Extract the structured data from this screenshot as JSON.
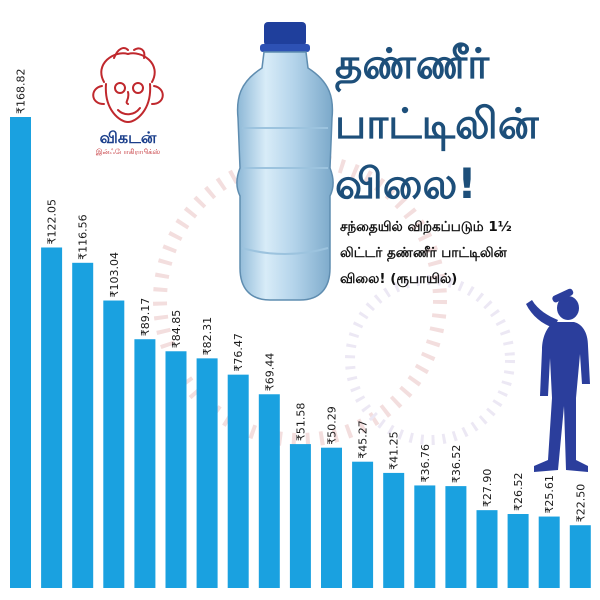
{
  "branding": {
    "name": "விகடன்",
    "tagline": "இன்ஃபோகிராபிக்ஸ்"
  },
  "colors": {
    "bar": "#1aa1e0",
    "title": "#1d4f7a",
    "figure": "#2b3e9c",
    "logo_accent": "#c0282d"
  },
  "icons": [
    "water-bottle-icon",
    "drinking-person-icon",
    "vikatan-logo-icon"
  ],
  "chart_data": {
    "type": "bar",
    "title": "தண்ணீர் பாட்டிலின் விலை!",
    "title_lines": [
      "தண்ணீர்",
      "பாட்டிலின்",
      "விலை!"
    ],
    "subtitle_lines": [
      "சந்தையில் விற்கப்படும் 1½",
      "லிட்டர் தண்ணீர் பாட்டிலின்",
      "விலை! (ரூபாயில்)"
    ],
    "currency_symbol": "₹",
    "categories": [],
    "values": [
      168.82,
      122.05,
      116.56,
      103.04,
      89.17,
      84.85,
      82.31,
      76.47,
      69.44,
      51.58,
      50.29,
      45.27,
      41.25,
      36.76,
      36.52,
      27.9,
      26.52,
      25.61,
      22.5
    ],
    "labels": [
      "₹168.82",
      "₹122.05",
      "₹116.56",
      "₹103.04",
      "₹89.17",
      "₹84.85",
      "₹82.31",
      "₹76.47",
      "₹69.44",
      "₹51.58",
      "₹50.29",
      "₹45.27",
      "₹41.25",
      "₹36.76",
      "₹36.52",
      "₹27.90",
      "₹26.52",
      "₹25.61",
      "₹22.50"
    ],
    "ylim": [
      0,
      175
    ],
    "grid": false,
    "legend": "none",
    "xlabel": "",
    "ylabel": ""
  }
}
